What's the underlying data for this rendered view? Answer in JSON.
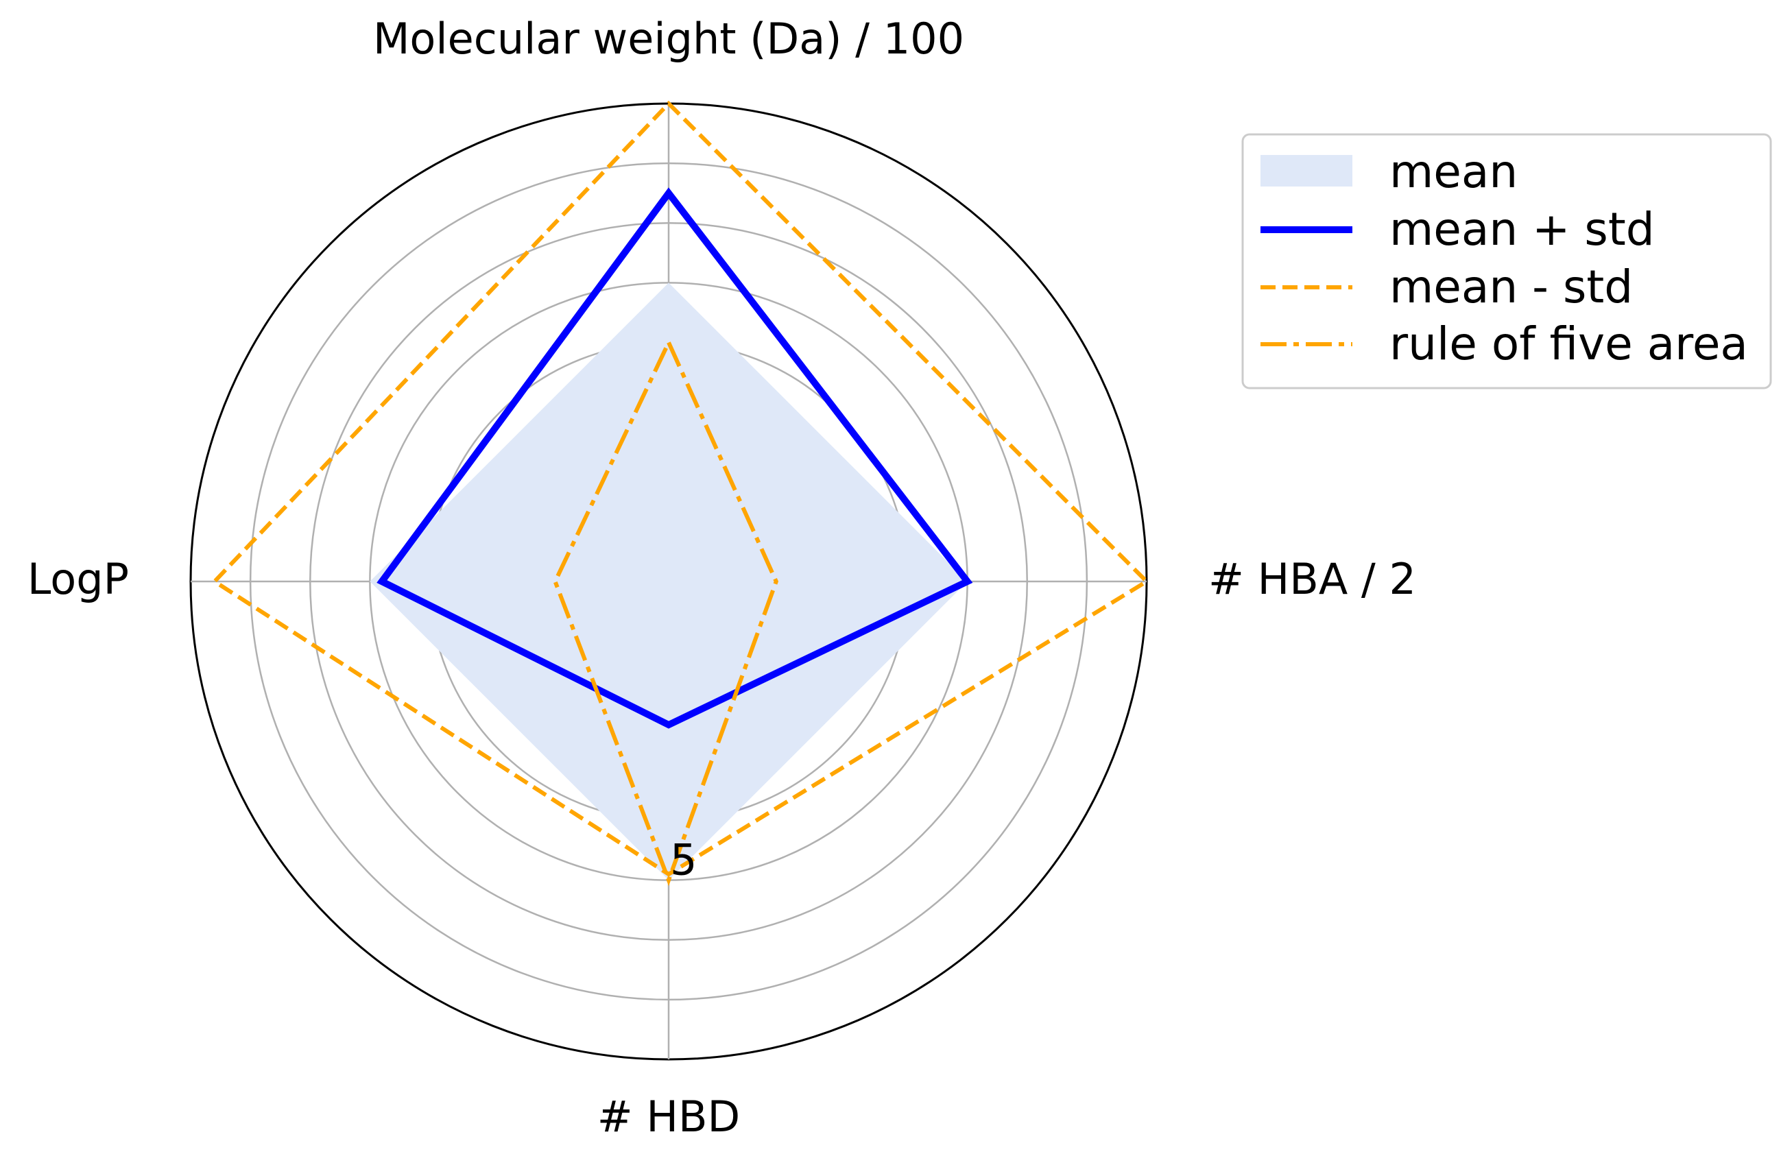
{
  "chart_data": {
    "type": "radar",
    "axes": [
      "Molecular weight (Da) / 100",
      "# HBA / 2",
      "# HBD",
      "LogP"
    ],
    "rlim": [
      0,
      8
    ],
    "r_gridlines": [
      1,
      2,
      3,
      4,
      5,
      6,
      7,
      8
    ],
    "r_tick_labels": [
      {
        "value": 5,
        "label": "5"
      }
    ],
    "grid": true,
    "legend_position": "upper-right, outside plot",
    "series": [
      {
        "name": "mean",
        "style": "filled area",
        "color": "#dfe8f8",
        "values": [
          5,
          5,
          5,
          5
        ]
      },
      {
        "name": "mean + std",
        "style": "solid",
        "color": "#0000ff",
        "values": [
          6.5,
          5,
          2.4,
          4.8
        ]
      },
      {
        "name": "mean - std",
        "style": "dashed",
        "color": "#ffa500",
        "values": [
          8.0,
          8.0,
          4.9,
          7.6
        ]
      },
      {
        "name": "rule of five area",
        "style": "dash-dot",
        "color": "#ffa500",
        "values": [
          4,
          1.8,
          5,
          1.9
        ]
      }
    ]
  }
}
